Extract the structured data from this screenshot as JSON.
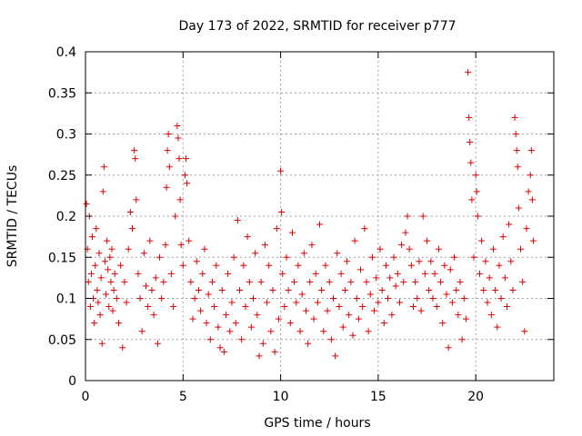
{
  "chart_data": {
    "type": "scatter",
    "title": "Day 173 of 2022, SRMTID for receiver p777",
    "xlabel": "GPS time / hours",
    "ylabel": "SRMTID / TECUs",
    "xlim": [
      0,
      24
    ],
    "ylim": [
      0,
      0.4
    ],
    "x_ticks": [
      0,
      5,
      10,
      15,
      20
    ],
    "x_tick_labels": [
      "0",
      "5",
      "10",
      "15",
      "20"
    ],
    "y_ticks": [
      0,
      0.05,
      0.1,
      0.15,
      0.2,
      0.25,
      0.3,
      0.35,
      0.4
    ],
    "y_tick_labels": [
      "0",
      "0.05",
      "0.1",
      "0.15",
      "0.2",
      "0.25",
      "0.3",
      "0.35",
      "0.4"
    ],
    "grid": true,
    "marker": "+",
    "color": "#e00000",
    "series": [
      {
        "name": "SRMTID",
        "points": [
          [
            0.05,
            0.215
          ],
          [
            0.1,
            0.16
          ],
          [
            0.15,
            0.12
          ],
          [
            0.2,
            0.2
          ],
          [
            0.25,
            0.09
          ],
          [
            0.3,
            0.13
          ],
          [
            0.35,
            0.175
          ],
          [
            0.4,
            0.1
          ],
          [
            0.45,
            0.07
          ],
          [
            0.5,
            0.14
          ],
          [
            0.55,
            0.185
          ],
          [
            0.6,
            0.11
          ],
          [
            0.65,
            0.095
          ],
          [
            0.7,
            0.155
          ],
          [
            0.75,
            0.08
          ],
          [
            0.8,
            0.125
          ],
          [
            0.85,
            0.045
          ],
          [
            0.9,
            0.23
          ],
          [
            0.95,
            0.26
          ],
          [
            1.0,
            0.145
          ],
          [
            1.05,
            0.105
          ],
          [
            1.1,
            0.17
          ],
          [
            1.15,
            0.135
          ],
          [
            1.2,
            0.09
          ],
          [
            1.25,
            0.15
          ],
          [
            1.3,
            0.12
          ],
          [
            1.35,
            0.16
          ],
          [
            1.4,
            0.085
          ],
          [
            1.45,
            0.11
          ],
          [
            1.5,
            0.13
          ],
          [
            1.6,
            0.1
          ],
          [
            1.7,
            0.07
          ],
          [
            1.8,
            0.14
          ],
          [
            1.9,
            0.04
          ],
          [
            2.0,
            0.12
          ],
          [
            2.1,
            0.095
          ],
          [
            2.2,
            0.16
          ],
          [
            2.3,
            0.205
          ],
          [
            2.4,
            0.185
          ],
          [
            2.5,
            0.28
          ],
          [
            2.55,
            0.27
          ],
          [
            2.6,
            0.22
          ],
          [
            2.7,
            0.13
          ],
          [
            2.8,
            0.1
          ],
          [
            2.9,
            0.06
          ],
          [
            3.0,
            0.155
          ],
          [
            3.1,
            0.115
          ],
          [
            3.2,
            0.09
          ],
          [
            3.3,
            0.17
          ],
          [
            3.4,
            0.11
          ],
          [
            3.5,
            0.08
          ],
          [
            3.6,
            0.125
          ],
          [
            3.7,
            0.045
          ],
          [
            3.8,
            0.15
          ],
          [
            3.9,
            0.1
          ],
          [
            4.0,
            0.12
          ],
          [
            4.1,
            0.165
          ],
          [
            4.15,
            0.235
          ],
          [
            4.2,
            0.28
          ],
          [
            4.25,
            0.3
          ],
          [
            4.3,
            0.26
          ],
          [
            4.4,
            0.13
          ],
          [
            4.5,
            0.09
          ],
          [
            4.6,
            0.2
          ],
          [
            4.7,
            0.31
          ],
          [
            4.75,
            0.295
          ],
          [
            4.8,
            0.27
          ],
          [
            4.85,
            0.22
          ],
          [
            4.9,
            0.165
          ],
          [
            5.0,
            0.14
          ],
          [
            5.1,
            0.25
          ],
          [
            5.15,
            0.27
          ],
          [
            5.2,
            0.24
          ],
          [
            5.3,
            0.17
          ],
          [
            5.4,
            0.12
          ],
          [
            5.5,
            0.075
          ],
          [
            5.6,
            0.1
          ],
          [
            5.7,
            0.145
          ],
          [
            5.8,
            0.11
          ],
          [
            5.9,
            0.085
          ],
          [
            6.0,
            0.13
          ],
          [
            6.1,
            0.16
          ],
          [
            6.2,
            0.07
          ],
          [
            6.3,
            0.105
          ],
          [
            6.4,
            0.05
          ],
          [
            6.5,
            0.12
          ],
          [
            6.6,
            0.09
          ],
          [
            6.7,
            0.14
          ],
          [
            6.8,
            0.065
          ],
          [
            6.9,
            0.04
          ],
          [
            7.0,
            0.11
          ],
          [
            7.1,
            0.035
          ],
          [
            7.2,
            0.08
          ],
          [
            7.3,
            0.13
          ],
          [
            7.4,
            0.06
          ],
          [
            7.5,
            0.095
          ],
          [
            7.6,
            0.15
          ],
          [
            7.7,
            0.07
          ],
          [
            7.8,
            0.195
          ],
          [
            7.9,
            0.11
          ],
          [
            8.0,
            0.05
          ],
          [
            8.1,
            0.14
          ],
          [
            8.2,
            0.09
          ],
          [
            8.3,
            0.175
          ],
          [
            8.4,
            0.12
          ],
          [
            8.5,
            0.065
          ],
          [
            8.6,
            0.1
          ],
          [
            8.7,
            0.155
          ],
          [
            8.8,
            0.08
          ],
          [
            8.9,
            0.03
          ],
          [
            9.0,
            0.12
          ],
          [
            9.1,
            0.045
          ],
          [
            9.2,
            0.165
          ],
          [
            9.3,
            0.095
          ],
          [
            9.4,
            0.14
          ],
          [
            9.5,
            0.06
          ],
          [
            9.6,
            0.11
          ],
          [
            9.7,
            0.035
          ],
          [
            9.8,
            0.185
          ],
          [
            9.9,
            0.075
          ],
          [
            10.0,
            0.255
          ],
          [
            10.05,
            0.205
          ],
          [
            10.1,
            0.13
          ],
          [
            10.2,
            0.09
          ],
          [
            10.3,
            0.15
          ],
          [
            10.4,
            0.11
          ],
          [
            10.5,
            0.07
          ],
          [
            10.6,
            0.18
          ],
          [
            10.7,
            0.12
          ],
          [
            10.8,
            0.095
          ],
          [
            10.9,
            0.14
          ],
          [
            11.0,
            0.06
          ],
          [
            11.1,
            0.105
          ],
          [
            11.2,
            0.155
          ],
          [
            11.3,
            0.085
          ],
          [
            11.4,
            0.045
          ],
          [
            11.5,
            0.12
          ],
          [
            11.6,
            0.165
          ],
          [
            11.7,
            0.075
          ],
          [
            11.8,
            0.13
          ],
          [
            11.9,
            0.095
          ],
          [
            12.0,
            0.19
          ],
          [
            12.1,
            0.11
          ],
          [
            12.2,
            0.06
          ],
          [
            12.3,
            0.14
          ],
          [
            12.4,
            0.085
          ],
          [
            12.5,
            0.12
          ],
          [
            12.6,
            0.05
          ],
          [
            12.7,
            0.1
          ],
          [
            12.8,
            0.03
          ],
          [
            12.9,
            0.155
          ],
          [
            13.0,
            0.09
          ],
          [
            13.1,
            0.13
          ],
          [
            13.2,
            0.065
          ],
          [
            13.3,
            0.11
          ],
          [
            13.4,
            0.145
          ],
          [
            13.5,
            0.08
          ],
          [
            13.6,
            0.12
          ],
          [
            13.7,
            0.055
          ],
          [
            13.8,
            0.17
          ],
          [
            13.9,
            0.1
          ],
          [
            14.0,
            0.075
          ],
          [
            14.1,
            0.135
          ],
          [
            14.2,
            0.09
          ],
          [
            14.3,
            0.185
          ],
          [
            14.4,
            0.12
          ],
          [
            14.5,
            0.06
          ],
          [
            14.6,
            0.105
          ],
          [
            14.7,
            0.15
          ],
          [
            14.8,
            0.085
          ],
          [
            14.9,
            0.125
          ],
          [
            15.0,
            0.095
          ],
          [
            15.1,
            0.16
          ],
          [
            15.2,
            0.11
          ],
          [
            15.3,
            0.07
          ],
          [
            15.4,
            0.14
          ],
          [
            15.5,
            0.1
          ],
          [
            15.6,
            0.125
          ],
          [
            15.7,
            0.08
          ],
          [
            15.8,
            0.15
          ],
          [
            15.9,
            0.115
          ],
          [
            16.0,
            0.13
          ],
          [
            16.1,
            0.095
          ],
          [
            16.2,
            0.165
          ],
          [
            16.3,
            0.12
          ],
          [
            16.4,
            0.18
          ],
          [
            16.5,
            0.2
          ],
          [
            16.6,
            0.16
          ],
          [
            16.7,
            0.14
          ],
          [
            16.8,
            0.09
          ],
          [
            16.9,
            0.12
          ],
          [
            17.0,
            0.1
          ],
          [
            17.1,
            0.145
          ],
          [
            17.2,
            0.085
          ],
          [
            17.3,
            0.2
          ],
          [
            17.4,
            0.13
          ],
          [
            17.5,
            0.17
          ],
          [
            17.6,
            0.11
          ],
          [
            17.7,
            0.145
          ],
          [
            17.8,
            0.1
          ],
          [
            17.9,
            0.13
          ],
          [
            18.0,
            0.09
          ],
          [
            18.1,
            0.16
          ],
          [
            18.2,
            0.12
          ],
          [
            18.3,
            0.07
          ],
          [
            18.4,
            0.14
          ],
          [
            18.5,
            0.105
          ],
          [
            18.6,
            0.04
          ],
          [
            18.7,
            0.135
          ],
          [
            18.8,
            0.095
          ],
          [
            18.9,
            0.15
          ],
          [
            19.0,
            0.11
          ],
          [
            19.1,
            0.08
          ],
          [
            19.2,
            0.12
          ],
          [
            19.3,
            0.05
          ],
          [
            19.4,
            0.1
          ],
          [
            19.5,
            0.075
          ],
          [
            19.6,
            0.375
          ],
          [
            19.65,
            0.32
          ],
          [
            19.7,
            0.29
          ],
          [
            19.75,
            0.265
          ],
          [
            19.8,
            0.22
          ],
          [
            19.9,
            0.15
          ],
          [
            20.0,
            0.25
          ],
          [
            20.05,
            0.23
          ],
          [
            20.1,
            0.2
          ],
          [
            20.2,
            0.13
          ],
          [
            20.3,
            0.17
          ],
          [
            20.4,
            0.11
          ],
          [
            20.5,
            0.145
          ],
          [
            20.6,
            0.095
          ],
          [
            20.7,
            0.125
          ],
          [
            20.8,
            0.08
          ],
          [
            20.9,
            0.16
          ],
          [
            21.0,
            0.11
          ],
          [
            21.1,
            0.065
          ],
          [
            21.2,
            0.14
          ],
          [
            21.3,
            0.1
          ],
          [
            21.4,
            0.175
          ],
          [
            21.5,
            0.125
          ],
          [
            21.6,
            0.09
          ],
          [
            21.7,
            0.19
          ],
          [
            21.8,
            0.145
          ],
          [
            21.9,
            0.11
          ],
          [
            22.0,
            0.32
          ],
          [
            22.05,
            0.3
          ],
          [
            22.1,
            0.28
          ],
          [
            22.15,
            0.26
          ],
          [
            22.2,
            0.21
          ],
          [
            22.3,
            0.16
          ],
          [
            22.4,
            0.12
          ],
          [
            22.5,
            0.06
          ],
          [
            22.6,
            0.185
          ],
          [
            22.7,
            0.23
          ],
          [
            22.8,
            0.25
          ],
          [
            22.85,
            0.28
          ],
          [
            22.9,
            0.22
          ],
          [
            22.95,
            0.17
          ]
        ]
      }
    ]
  }
}
